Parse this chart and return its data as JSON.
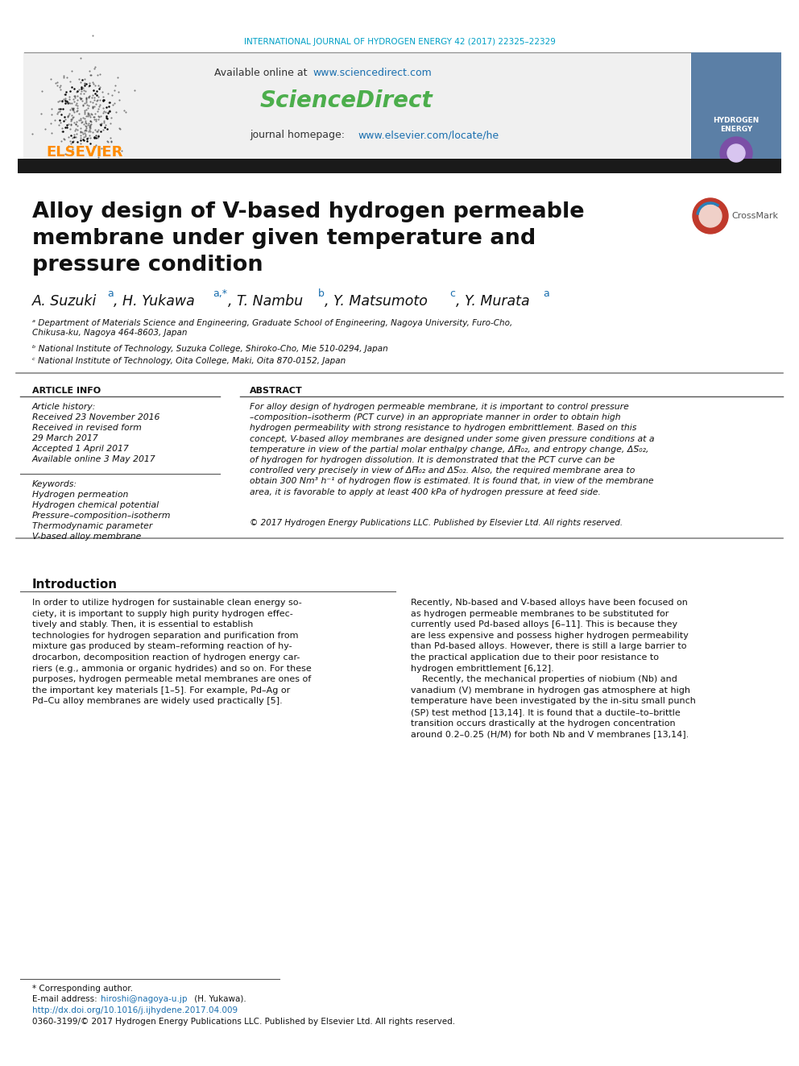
{
  "journal_header": "INTERNATIONAL JOURNAL OF HYDROGEN ENERGY 42 (2017) 22325–22329",
  "journal_header_color": "#00a0c6",
  "sciencedirect_url": "www.sciencedirect.com",
  "sciencedirect_label": "ScienceDirect",
  "sciencedirect_color": "#4cae4c",
  "journal_homepage_url": "www.elsevier.com/locate/he",
  "elsevier_color": "#ff8c00",
  "black_bar_color": "#1a1a1a",
  "affil_a": "ᵃ Department of Materials Science and Engineering, Graduate School of Engineering, Nagoya University, Furo-Cho,\nChikusa-ku, Nagoya 464-8603, Japan",
  "affil_b": "ᵇ National Institute of Technology, Suzuka College, Shiroko-Cho, Mie 510-0294, Japan",
  "affil_c": "ᶜ National Institute of Technology, Oita College, Maki, Oita 870-0152, Japan",
  "kw3": "Pressure–composition–isotherm",
  "copyright_text": "© 2017 Hydrogen Energy Publications LLC. Published by Elsevier Ltd. All rights reserved.",
  "footnote_issn": "0360-3199/© 2017 Hydrogen Energy Publications LLC. Published by Elsevier Ltd. All rights reserved.",
  "bg_color": "#ffffff",
  "text_color": "#000000",
  "link_color": "#1a6faf"
}
